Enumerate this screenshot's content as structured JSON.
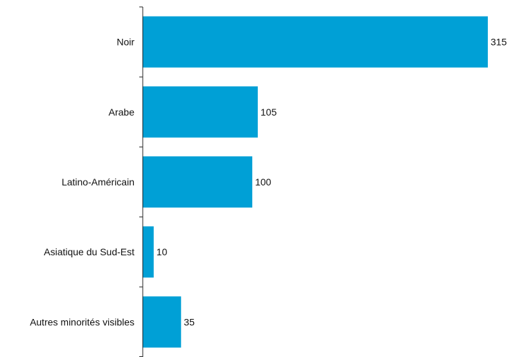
{
  "colors": {
    "bar": "#00a0d6",
    "axis": "#222222",
    "text": "#111111"
  },
  "chart_data": {
    "type": "bar",
    "orientation": "horizontal",
    "title": "",
    "xlabel": "",
    "ylabel": "",
    "categories": [
      "Noir",
      "Arabe",
      "Latino-Américain",
      "Asiatique du Sud-Est",
      "Autres minorités visibles"
    ],
    "values": [
      315,
      105,
      100,
      10,
      35
    ],
    "value_labels": [
      "315",
      "105",
      "100",
      "10",
      "35"
    ],
    "xlim": [
      0,
      315
    ],
    "grid": false,
    "legend": "none"
  }
}
